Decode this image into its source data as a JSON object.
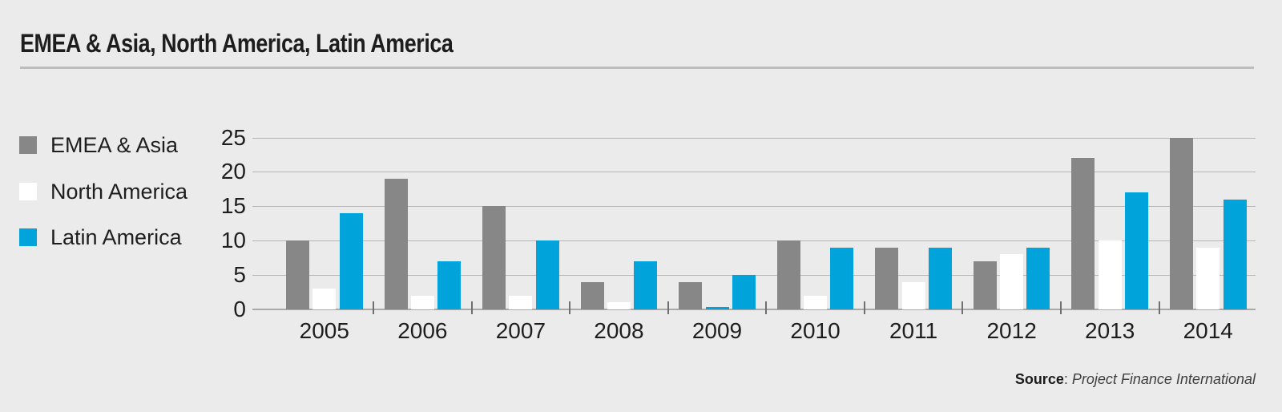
{
  "header": {
    "title": "EMEA & Asia, North America, Latin America"
  },
  "source": {
    "label": "Source",
    "separator": ": ",
    "text": "Project Finance International"
  },
  "colors": {
    "background": "#ebebeb",
    "gridline": "#b6b6b6",
    "baseline": "#a9a9a9",
    "separator_tick": "#6f6f6f",
    "text": "#1e1e1e",
    "title_rule": "#bdbdbd",
    "emea_asia": "#878787",
    "north_america": "#ffffff",
    "latin_america": "#00a3da"
  },
  "chart_data": {
    "type": "bar",
    "title": "EMEA & Asia, North America, Latin America",
    "categories": [
      "2005",
      "2006",
      "2007",
      "2008",
      "2009",
      "2010",
      "2011",
      "2012",
      "2013",
      "2014"
    ],
    "series": [
      {
        "name": "EMEA & Asia",
        "color": "#878787",
        "values": [
          10,
          19,
          15,
          4,
          4,
          10,
          9,
          7,
          22,
          25
        ]
      },
      {
        "name": "North America",
        "color": "#ffffff",
        "values": [
          3,
          2,
          2,
          1,
          0.3,
          2,
          4,
          8,
          10,
          9
        ]
      },
      {
        "name": "Latin America",
        "color": "#00a3da",
        "values": [
          14,
          7,
          10,
          7,
          5,
          9,
          9,
          9,
          17,
          16
        ]
      }
    ],
    "bar_color_overrides": [
      {
        "category": "2009",
        "series": "North America",
        "color": "#00a3da"
      }
    ],
    "xlabel": "",
    "ylabel": "",
    "ylim": [
      0,
      25
    ],
    "yticks": [
      0,
      5,
      10,
      15,
      20,
      25
    ],
    "grid": "horizontal",
    "legend_position": "left",
    "source": "Project Finance International"
  }
}
